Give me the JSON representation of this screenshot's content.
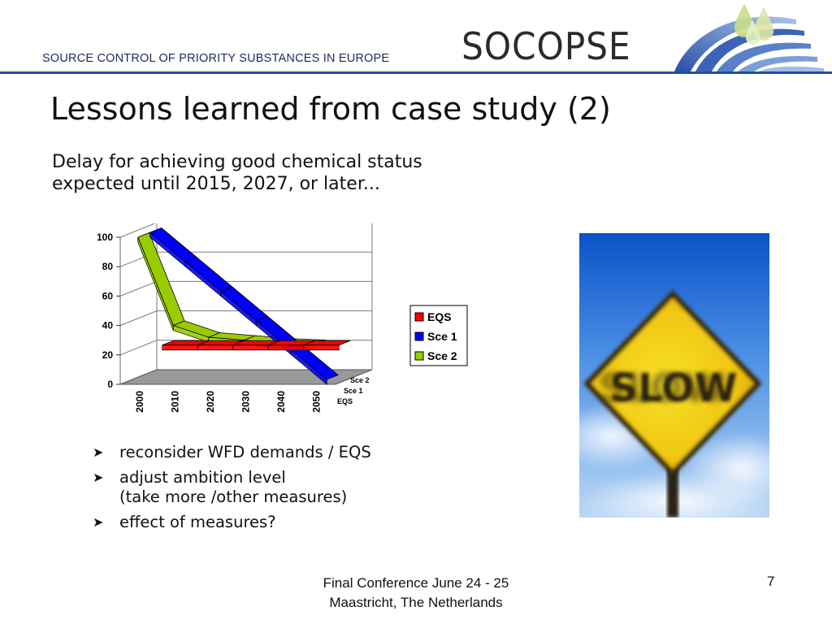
{
  "header": {
    "org_name": "SOURCE CONTROL OF PRIORITY SUBSTANCES IN EUROPE",
    "brand": "SOCOPSE",
    "logo_icon": "water-drops-wave-logo",
    "accent_color": "#1e4ea8"
  },
  "slide": {
    "title": "Lessons learned from case study (2)",
    "intro": "Delay for achieving good chemical status expected until 2015, 2027, or later...",
    "bullets": [
      "reconsider WFD demands / EQS",
      "adjust ambition level",
      "(take more /other measures)",
      "effect of measures?"
    ],
    "bullet_icon": "arrowhead-icon"
  },
  "photo": {
    "sign_text": "SLOW",
    "icon": "yellow-diamond-road-sign"
  },
  "footer": {
    "line1": "Final Conference June 24 - 25",
    "line2": "Maastricht, The Netherlands",
    "page_number": "7"
  },
  "chart_data": {
    "type": "line",
    "title": "",
    "xlabel": "",
    "ylabel": "",
    "ylim": [
      0,
      100
    ],
    "y_ticks": [
      0,
      20,
      40,
      60,
      80,
      100
    ],
    "categories": [
      "2000",
      "2010",
      "2020",
      "2030",
      "2040",
      "2050"
    ],
    "depth_labels": [
      "Sce 2",
      "Sce 1",
      "EQS"
    ],
    "grid": true,
    "legend_position": "right",
    "series": [
      {
        "name": "EQS",
        "color": "#ff0000",
        "values": [
          20,
          20,
          20,
          20,
          20,
          20
        ]
      },
      {
        "name": "Sce 1",
        "color": "#0000ff",
        "values": [
          100,
          80,
          60,
          40,
          20,
          0
        ]
      },
      {
        "name": "Sce 2",
        "color": "#99cc00",
        "values": [
          100,
          40,
          32,
          30,
          28,
          27
        ]
      }
    ]
  }
}
